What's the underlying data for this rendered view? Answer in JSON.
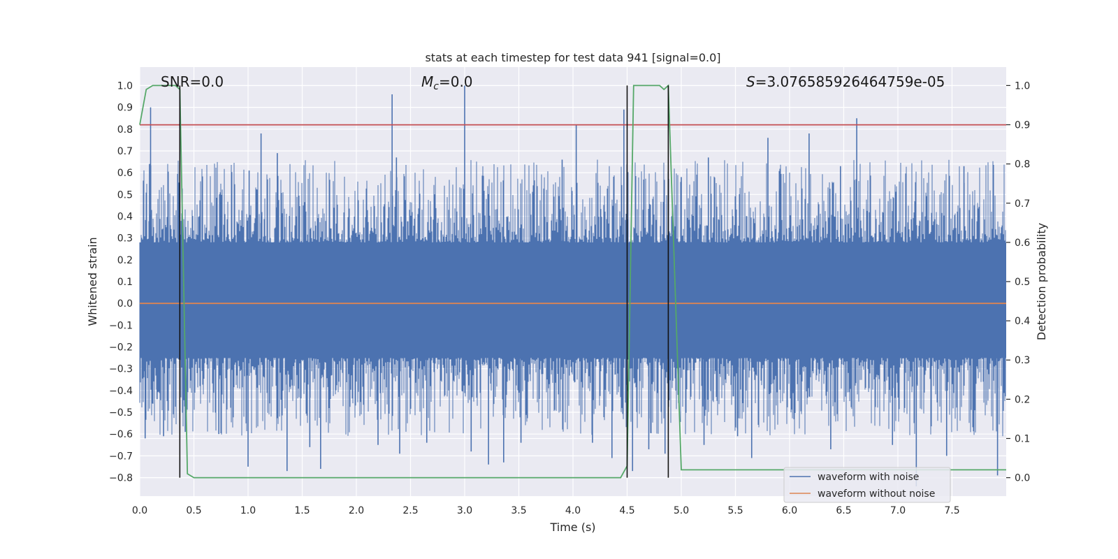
{
  "chart_data": {
    "type": "line",
    "title": "stats at each timestep for test data 941 [signal=0.0]",
    "xlabel": "Time (s)",
    "ylabel": "Whitened strain",
    "y2label": "Detection probability",
    "xlim": [
      0.0,
      8.0
    ],
    "ylim": [
      -0.885,
      1.085
    ],
    "y2lim": [
      -0.047,
      1.047
    ],
    "x_ticks": [
      "0.0",
      "0.5",
      "1.0",
      "1.5",
      "2.0",
      "2.5",
      "3.0",
      "3.5",
      "4.0",
      "4.5",
      "5.0",
      "5.5",
      "6.0",
      "6.5",
      "7.0",
      "7.5"
    ],
    "y_ticks": [
      "1.0",
      "0.9",
      "0.8",
      "0.7",
      "0.6",
      "0.5",
      "0.4",
      "0.3",
      "0.2",
      "0.1",
      "0.0",
      "−0.1",
      "−0.2",
      "−0.3",
      "−0.4",
      "−0.5",
      "−0.6",
      "−0.7",
      "−0.8"
    ],
    "y2_ticks": [
      "1.0",
      "0.9",
      "0.8",
      "0.7",
      "0.6",
      "0.5",
      "0.4",
      "0.3",
      "0.2",
      "0.1",
      "0.0"
    ],
    "grid": true,
    "legend_placement": "lower-right",
    "annotations": {
      "snr": "SNR=0.0",
      "mc_symbol": "M",
      "mc_sub": "c",
      "mc_value": "=0.0",
      "s_symbol": "S",
      "s_value": "=3.076585926464759e-05"
    },
    "threshold": 0.9,
    "vlines_x": [
      0.37,
      4.5,
      4.88
    ],
    "series": [
      {
        "name": "waveform with noise",
        "color": "#4c72b0",
        "noise_band": [
          -0.25,
          0.28
        ],
        "spikes": [
          {
            "x": 0.05,
            "y": -0.62
          },
          {
            "x": 0.09,
            "y": 0.64
          },
          {
            "x": 0.1,
            "y": 0.9
          },
          {
            "x": 0.16,
            "y": -0.44
          },
          {
            "x": 0.22,
            "y": -0.61
          },
          {
            "x": 0.42,
            "y": -0.59
          },
          {
            "x": 0.55,
            "y": 0.4
          },
          {
            "x": 0.73,
            "y": -0.6
          },
          {
            "x": 1.0,
            "y": -0.75
          },
          {
            "x": 1.01,
            "y": 0.61
          },
          {
            "x": 1.12,
            "y": 0.78
          },
          {
            "x": 1.27,
            "y": 0.69
          },
          {
            "x": 1.36,
            "y": -0.77
          },
          {
            "x": 1.57,
            "y": -0.66
          },
          {
            "x": 1.67,
            "y": -0.76
          },
          {
            "x": 2.2,
            "y": -0.65
          },
          {
            "x": 2.33,
            "y": 0.96
          },
          {
            "x": 2.37,
            "y": 0.67
          },
          {
            "x": 2.4,
            "y": -0.69
          },
          {
            "x": 2.65,
            "y": -0.64
          },
          {
            "x": 3.0,
            "y": 1.0
          },
          {
            "x": 3.06,
            "y": -0.68
          },
          {
            "x": 3.22,
            "y": -0.74
          },
          {
            "x": 3.36,
            "y": -0.73
          },
          {
            "x": 3.52,
            "y": -0.64
          },
          {
            "x": 3.9,
            "y": 0.66
          },
          {
            "x": 4.03,
            "y": 0.82
          },
          {
            "x": 4.18,
            "y": -0.64
          },
          {
            "x": 4.36,
            "y": -0.71
          },
          {
            "x": 4.47,
            "y": 0.89
          },
          {
            "x": 4.55,
            "y": -0.77
          },
          {
            "x": 4.7,
            "y": -0.67
          },
          {
            "x": 4.85,
            "y": -0.69
          },
          {
            "x": 5.0,
            "y": 0.58
          },
          {
            "x": 5.21,
            "y": -0.65
          },
          {
            "x": 5.25,
            "y": 0.67
          },
          {
            "x": 5.52,
            "y": -0.61
          },
          {
            "x": 5.65,
            "y": -0.71
          },
          {
            "x": 5.8,
            "y": 0.76
          },
          {
            "x": 6.18,
            "y": 0.78
          },
          {
            "x": 6.38,
            "y": -0.67
          },
          {
            "x": 6.47,
            "y": 0.63
          },
          {
            "x": 6.62,
            "y": 0.85
          },
          {
            "x": 6.95,
            "y": -0.65
          },
          {
            "x": 7.17,
            "y": -0.84
          },
          {
            "x": 7.45,
            "y": -0.7
          },
          {
            "x": 7.61,
            "y": 0.63
          },
          {
            "x": 7.92,
            "y": -0.79
          }
        ]
      },
      {
        "name": "waveform without noise",
        "color": "#dd8452",
        "x": [
          0.0,
          8.0
        ],
        "y": [
          0.0,
          0.0
        ]
      },
      {
        "name": "",
        "color": "#55a868",
        "axis": "right",
        "x": [
          0.0,
          0.06,
          0.12,
          0.33,
          0.37,
          0.44,
          0.5,
          4.44,
          4.5,
          4.56,
          4.62,
          4.8,
          4.84,
          4.88,
          5.0,
          8.0
        ],
        "y": [
          0.9,
          0.99,
          1.0,
          1.0,
          0.99,
          0.01,
          0.0,
          0.0,
          0.03,
          1.0,
          1.0,
          1.0,
          0.99,
          1.0,
          0.02,
          0.02
        ]
      },
      {
        "name": "",
        "color": "#c44e52",
        "x": [
          0.0,
          8.0
        ],
        "y": [
          0.82,
          0.82
        ]
      }
    ]
  }
}
